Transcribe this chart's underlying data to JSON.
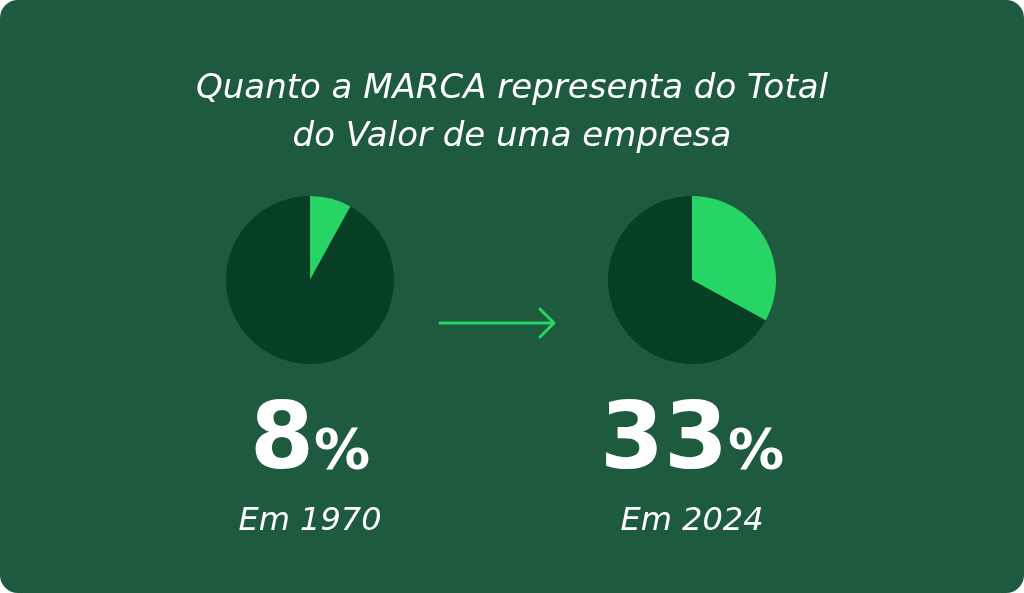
{
  "chart_data": [
    {
      "type": "pie",
      "title": "Quanto a MARCA representa do Total do Valor de uma empresa",
      "categories": [
        null,
        null
      ],
      "values": [
        8,
        92
      ],
      "colors": [
        "#27d466",
        "#063f24"
      ],
      "annotations": [
        "8%",
        "Em 1970"
      ]
    },
    {
      "type": "pie",
      "categories": [
        null,
        null
      ],
      "values": [
        33,
        67
      ],
      "colors": [
        "#27d466",
        "#063f24"
      ],
      "annotations": [
        "33%",
        "Em 2024"
      ]
    }
  ]
}
